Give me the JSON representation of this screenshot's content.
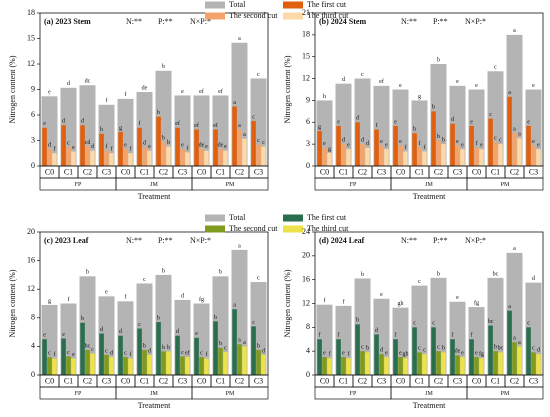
{
  "chart_data": [
    {
      "type": "bar",
      "title": "(a) 2023 Stem",
      "annotations": [
        "N:**",
        "P:**",
        "N×P:*"
      ],
      "legend": true,
      "categories": [
        "C0",
        "C1",
        "C2",
        "C3",
        "C0",
        "C1",
        "C2",
        "C3",
        "C0",
        "C1",
        "C2",
        "C3"
      ],
      "groups": [
        "FP",
        "JM",
        "PM"
      ],
      "xlabel": "Treatment",
      "ylabel": "Nitrogen content (%)",
      "ylim": [
        0,
        18
      ],
      "yticks": [
        0,
        3,
        6,
        9,
        12,
        15,
        18
      ],
      "series": [
        {
          "name": "Total",
          "color": "#b4b4b4",
          "values": [
            8.2,
            9.2,
            9.5,
            7.2,
            7.9,
            8.7,
            11.2,
            8.3,
            8.3,
            8.3,
            14.5,
            10.3
          ],
          "letters": [
            "e",
            "d",
            "dc",
            "f",
            "f",
            "de",
            "b",
            "e",
            "ef",
            "ef",
            "a",
            "c"
          ]
        },
        {
          "name": "The first cut",
          "color": "#e0600e",
          "values": [
            4.5,
            4.8,
            4.8,
            3.8,
            4.0,
            4.5,
            5.8,
            4.5,
            4.3,
            4.3,
            7.0,
            5.3
          ],
          "letters": [
            "e",
            "d",
            "d",
            "h",
            "g",
            "f",
            "b",
            "ef",
            "ef",
            "ef",
            "a",
            "c"
          ]
        },
        {
          "name": "The second cut",
          "color": "#f4a46a",
          "values": [
            2.0,
            2.2,
            2.3,
            1.8,
            2.0,
            2.2,
            2.8,
            2.0,
            2.0,
            2.0,
            4.3,
            2.5
          ],
          "letters": [
            "d",
            "c",
            "cd",
            "f",
            "e",
            "d",
            "b",
            "e",
            "de",
            "de",
            "a",
            "c"
          ]
        },
        {
          "name": "The third cut",
          "color": "#fbd9a8",
          "values": [
            1.5,
            1.7,
            1.8,
            1.5,
            1.5,
            1.8,
            2.3,
            1.6,
            1.8,
            1.8,
            3.2,
            2.3
          ],
          "letters": [
            "f",
            "e",
            "d",
            "f",
            "f",
            "e",
            "b",
            "f",
            "e",
            "e",
            "a",
            "c"
          ]
        }
      ]
    },
    {
      "type": "bar",
      "title": "(b) 2024 Stem",
      "annotations": [
        "N:**",
        "P:**",
        "N×P:*"
      ],
      "legend": false,
      "categories": [
        "C0",
        "C1",
        "C2",
        "C3",
        "C0",
        "C1",
        "C2",
        "C3",
        "C0",
        "C1",
        "C2",
        "C3"
      ],
      "groups": [
        "FP",
        "JM",
        "PM"
      ],
      "xlabel": "Treatment",
      "ylabel": "Nitrogen content (%)",
      "ylim": [
        0,
        21
      ],
      "yticks": [
        0,
        3,
        6,
        9,
        12,
        15,
        18,
        21
      ],
      "series": [
        {
          "color": "#b4b4b4",
          "values": [
            9.0,
            11.3,
            12.0,
            11.0,
            10.5,
            9.0,
            14.0,
            11.0,
            10.5,
            13.0,
            18.0,
            10.5
          ],
          "letters": [
            "h",
            "d",
            "c",
            "ef",
            "e",
            "g",
            "b",
            "e",
            "e",
            "c",
            "a",
            "e"
          ]
        },
        {
          "color": "#e0600e",
          "values": [
            4.8,
            5.5,
            6.0,
            5.0,
            5.5,
            4.5,
            7.5,
            5.8,
            5.5,
            6.5,
            9.5,
            5.5
          ],
          "letters": [
            "g",
            "e",
            "d",
            "f",
            "e",
            "h",
            "b",
            "d",
            "e",
            "c",
            "a",
            "e"
          ]
        },
        {
          "color": "#f4a46a",
          "values": [
            2.5,
            3.0,
            3.0,
            2.8,
            2.8,
            2.5,
            3.5,
            2.8,
            2.5,
            3.3,
            4.5,
            2.8
          ],
          "letters": [
            "e",
            "d",
            "d",
            "e",
            "e",
            "f",
            "b",
            "e",
            "f",
            "c",
            "a",
            "e"
          ]
        },
        {
          "color": "#fbd9a8",
          "values": [
            1.8,
            2.3,
            2.5,
            2.3,
            2.0,
            2.0,
            3.0,
            2.3,
            2.3,
            3.0,
            3.8,
            2.3
          ],
          "letters": [
            "g",
            "e",
            "d",
            "e",
            "f",
            "f",
            "b",
            "e",
            "e",
            "c",
            "a",
            "e"
          ]
        }
      ]
    },
    {
      "type": "bar",
      "title": "(c) 2023  Leaf",
      "annotations": [
        "N:**",
        "P:**",
        "N×P:*"
      ],
      "legend": true,
      "categories": [
        "C0",
        "C1",
        "C2",
        "C3",
        "C0",
        "C1",
        "C2",
        "C3",
        "C0",
        "C1",
        "C2",
        "C3"
      ],
      "groups": [
        "FP",
        "JM",
        "PM"
      ],
      "xlabel": "Treatment",
      "ylabel": "Nitrogen content (%)",
      "ylim": [
        0,
        20
      ],
      "yticks": [
        0,
        4,
        8,
        12,
        16,
        20
      ],
      "series": [
        {
          "name": "Total",
          "color": "#b4b4b4",
          "values": [
            9.8,
            10.0,
            13.8,
            11.0,
            10.3,
            12.8,
            14.0,
            10.5,
            10.0,
            13.8,
            17.5,
            13.0
          ],
          "letters": [
            "g",
            "f",
            "b",
            "e",
            "f",
            "c",
            "b",
            "d",
            "fg",
            "b",
            "a",
            "c"
          ]
        },
        {
          "name": "The first cut",
          "color": "#2a6e4e",
          "values": [
            5.0,
            5.1,
            7.3,
            5.8,
            5.5,
            6.5,
            7.4,
            5.5,
            5.2,
            7.5,
            9.2,
            6.8
          ],
          "letters": [
            "e",
            "e",
            "b",
            "d",
            "d",
            "c",
            "b",
            "d",
            "e",
            "b",
            "a",
            "c"
          ]
        },
        {
          "name": "The second cut",
          "color": "#7f9a1c",
          "values": [
            2.5,
            2.6,
            3.5,
            2.8,
            2.5,
            3.5,
            3.3,
            2.6,
            2.5,
            3.8,
            4.3,
            3.5
          ],
          "letters": [
            "c",
            "c",
            "bc",
            "c",
            "c",
            "b",
            "b",
            "c",
            "c",
            "b",
            "a",
            "b"
          ]
        },
        {
          "name": "The third cut",
          "color": "#ede24a",
          "values": [
            2.3,
            2.3,
            3.0,
            2.5,
            2.3,
            2.8,
            3.3,
            2.5,
            2.3,
            3.2,
            4.0,
            2.8
          ],
          "letters": [
            "f",
            "e",
            "c",
            "d",
            "f",
            "d",
            "b",
            "ef",
            "f",
            "c",
            "a",
            "d"
          ]
        }
      ]
    },
    {
      "type": "bar",
      "title": "(d) 2024  Leaf",
      "annotations": [
        "N:**",
        "P:**",
        "N×P:*"
      ],
      "legend": false,
      "categories": [
        "C0",
        "C1",
        "C2",
        "C3",
        "C0",
        "C1",
        "C2",
        "C3",
        "C0",
        "C1",
        "C2",
        "C3"
      ],
      "groups": [
        "FP",
        "JM",
        "PM"
      ],
      "xlabel": "Treatment",
      "ylabel": "Nitrogen content (%)",
      "ylim": [
        0,
        24
      ],
      "yticks": [
        0,
        4,
        8,
        12,
        16,
        20,
        24
      ],
      "series": [
        {
          "color": "#b4b4b4",
          "values": [
            11.8,
            11.6,
            16.2,
            12.8,
            11.3,
            15.0,
            16.3,
            12.3,
            11.4,
            16.3,
            20.5,
            15.5
          ],
          "letters": [
            "f",
            "f",
            "b",
            "e",
            "gh",
            "c",
            "b",
            "e",
            "fg",
            "bc",
            "a",
            "d"
          ]
        },
        {
          "color": "#2a6e4e",
          "values": [
            6.0,
            6.0,
            8.5,
            6.8,
            6.0,
            8.0,
            8.0,
            6.0,
            6.0,
            8.3,
            10.8,
            8.0
          ],
          "letters": [
            "f",
            "f",
            "b",
            "d",
            "f",
            "c",
            "c",
            "f",
            "f",
            "bc",
            "a",
            "c"
          ]
        },
        {
          "color": "#7f9a1c",
          "values": [
            3.0,
            3.0,
            4.0,
            3.5,
            3.0,
            3.8,
            4.0,
            3.3,
            3.0,
            4.0,
            5.5,
            3.8
          ],
          "letters": [
            "e",
            "e",
            "c",
            "d",
            "e",
            "c",
            "c",
            "de",
            "e",
            "b",
            "a",
            "c"
          ]
        },
        {
          "color": "#ede24a",
          "values": [
            2.8,
            2.8,
            3.8,
            3.0,
            2.8,
            3.5,
            3.8,
            3.0,
            2.8,
            3.8,
            4.8,
            3.5
          ],
          "letters": [
            "f",
            "f",
            "b",
            "e",
            "gh",
            "c",
            "b",
            "e",
            "fg",
            "bc",
            "a",
            "d"
          ]
        }
      ]
    }
  ]
}
